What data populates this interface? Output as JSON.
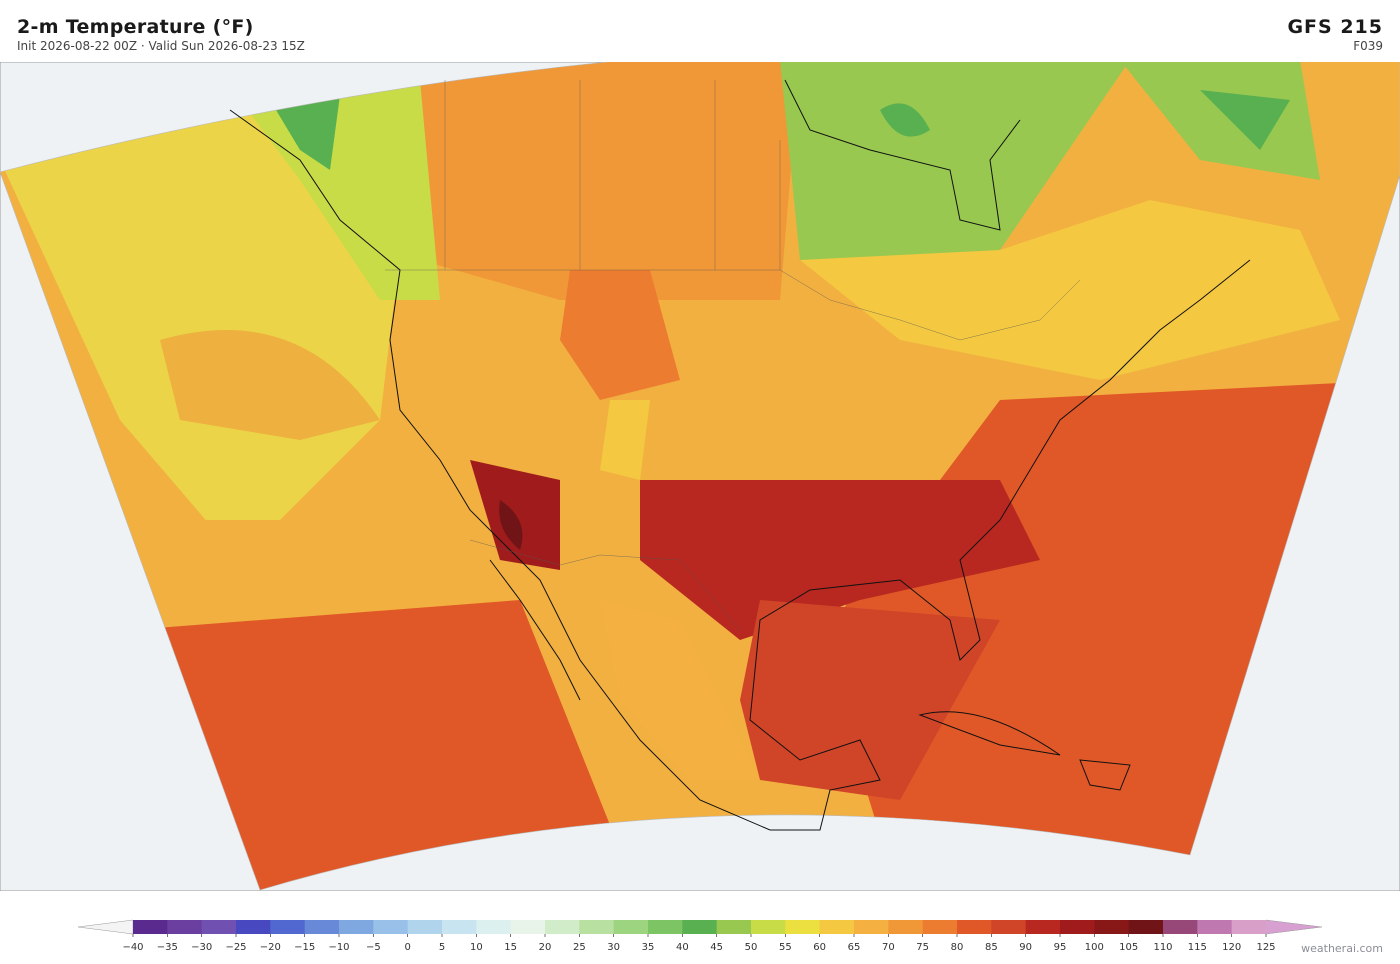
{
  "header": {
    "title": "2-m Temperature  (°F)",
    "subtitle": "Init 2026-08-22 00Z  ·  Valid Sun 2026-08-23 15Z",
    "model": "GFS  215",
    "forecast_hour": "F039"
  },
  "colorbar": {
    "range": [
      -40,
      125
    ],
    "ticks": [
      {
        "value": -40,
        "label": "−40"
      },
      {
        "value": -35,
        "label": "−35"
      },
      {
        "value": -30,
        "label": "−30"
      },
      {
        "value": -25,
        "label": "−25"
      },
      {
        "value": -20,
        "label": "−20"
      },
      {
        "value": -15,
        "label": "−15"
      },
      {
        "value": -10,
        "label": "−10"
      },
      {
        "value": -5,
        "label": "−5"
      },
      0,
      5,
      10,
      15,
      20,
      25,
      30,
      35,
      40,
      45,
      50,
      55,
      60,
      65,
      70,
      75,
      80,
      85,
      90,
      95,
      100,
      105,
      110,
      115,
      120,
      125
    ],
    "colors": [
      "#5b2a8e",
      "#6b3fa0",
      "#7050b0",
      "#4848c0",
      "#5068d0",
      "#6888d8",
      "#80a8e0",
      "#98c0e8",
      "#b0d4ec",
      "#c8e4f0",
      "#dcf0f0",
      "#e8f4ea",
      "#d0ecc8",
      "#b8e0a0",
      "#9cd480",
      "#7cc464",
      "#58b050",
      "#98c850",
      "#c8dc48",
      "#ece040",
      "#f4c840",
      "#f4b040",
      "#f09838",
      "#ec7c30",
      "#e05828",
      "#d04428",
      "#b82820",
      "#a01c1c",
      "#881818",
      "#701418",
      "#984878",
      "#c078b0",
      "#d8a0c8"
    ],
    "extend_low_color": "#f4f4f4",
    "extend_high_color": "#d8a0d0"
  },
  "credit": "weatherai.com"
}
